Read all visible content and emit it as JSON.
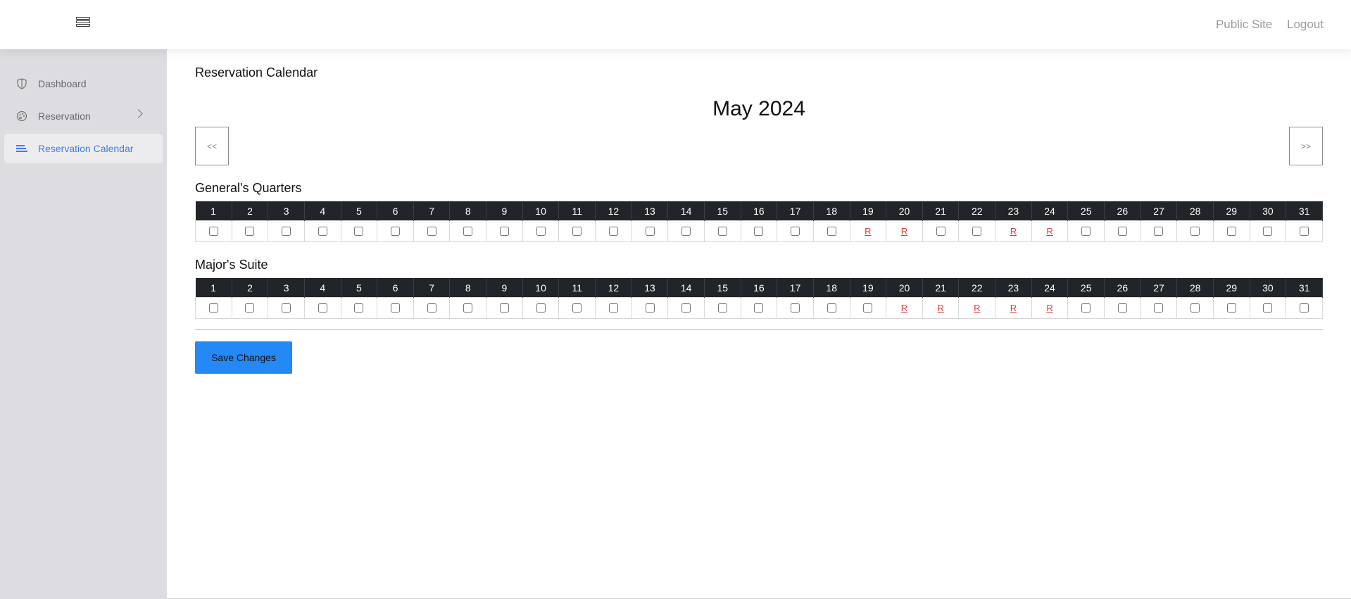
{
  "header": {
    "links": [
      "Public Site",
      "Logout"
    ],
    "menu_icon": "hamburger-icon"
  },
  "sidebar": {
    "items": [
      {
        "label": "Dashboard",
        "icon": "shield-icon",
        "active": false
      },
      {
        "label": "Reservation",
        "icon": "palette-icon",
        "active": false,
        "has_submenu": true
      },
      {
        "label": "Reservation Calendar",
        "icon": "list-icon",
        "active": true
      }
    ]
  },
  "page": {
    "title": "Reservation Calendar",
    "month": "May 2024",
    "prev_label": "<<",
    "next_label": ">>",
    "save_label": "Save Changes"
  },
  "colors": {
    "accent": "#2488f5",
    "active_link": "#3f7fe8",
    "reserved": "#e03a3a",
    "header_row": "#212529"
  },
  "rooms": [
    {
      "name": "General's Quarters",
      "days": [
        1,
        2,
        3,
        4,
        5,
        6,
        7,
        8,
        9,
        10,
        11,
        12,
        13,
        14,
        15,
        16,
        17,
        18,
        19,
        20,
        21,
        22,
        23,
        24,
        25,
        26,
        27,
        28,
        29,
        30,
        31
      ],
      "reserved": [
        19,
        20,
        23,
        24
      ],
      "reserved_label": "R"
    },
    {
      "name": "Major's Suite",
      "days": [
        1,
        2,
        3,
        4,
        5,
        6,
        7,
        8,
        9,
        10,
        11,
        12,
        13,
        14,
        15,
        16,
        17,
        18,
        19,
        20,
        21,
        22,
        23,
        24,
        25,
        26,
        27,
        28,
        29,
        30,
        31
      ],
      "reserved": [
        20,
        21,
        22,
        23,
        24
      ],
      "reserved_label": "R"
    }
  ]
}
